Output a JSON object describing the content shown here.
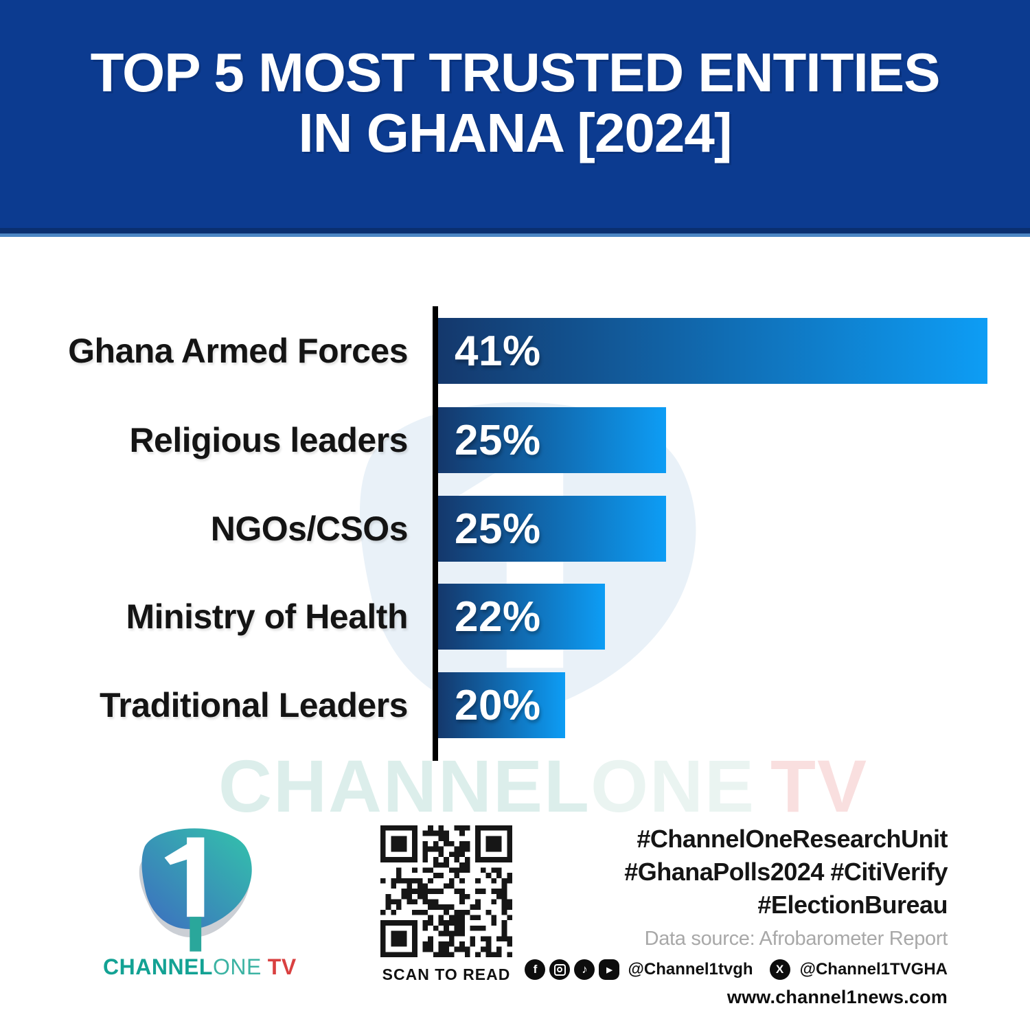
{
  "header": {
    "title_line1": "TOP 5 MOST TRUSTED ENTITIES",
    "title_line2": "IN GHANA [2024]"
  },
  "chart_data": {
    "type": "bar",
    "orientation": "horizontal",
    "title": "Top 5 Most Trusted Entities in Ghana [2024]",
    "categories": [
      "Ghana Armed Forces",
      "Religious leaders",
      "NGOs/CSOs",
      "Ministry of Health",
      "Traditional Leaders"
    ],
    "values": [
      41,
      25,
      25,
      22,
      20
    ],
    "value_labels": [
      "41%",
      "25%",
      "25%",
      "22%",
      "20%"
    ],
    "unit": "%",
    "bar_width_pct_of_max": [
      100,
      41.5,
      41.5,
      30.4,
      23.1
    ],
    "grid": false,
    "legend": false,
    "value_axis_visible": false
  },
  "watermark": {
    "part_channel": "CHANNEL",
    "part_one": "ONE",
    "part_tv": "TV"
  },
  "footer": {
    "logo": {
      "numeral": "1",
      "wordmark_channel": "CHANNEL",
      "wordmark_one": "ONE",
      "wordmark_tv": "TV"
    },
    "qr": {
      "caption": "SCAN TO READ"
    },
    "hashtags": {
      "line1": "#ChannelOneResearchUnit",
      "line2": "#GhanaPolls2024 #CitiVerify",
      "line3": "#ElectionBureau"
    },
    "data_source": "Data source: Afrobarometer Report",
    "social": {
      "icons": [
        "facebook-icon",
        "instagram-icon",
        "tiktok-icon",
        "youtube-icon",
        "x-icon"
      ],
      "handle_main": "@Channel1tvgh",
      "handle_x": "@Channel1TVGHA"
    },
    "website": "www.channel1news.com"
  },
  "colors": {
    "banner_blue": "#0c3b90",
    "banner_edge_dark": "#0a2f70",
    "banner_edge_light": "#4c86c4",
    "bar_start": "#14386c",
    "bar_end": "#0d9df5",
    "axis_black": "#000000",
    "label_black": "#141414",
    "hashtag_black": "#151515",
    "source_gray": "#a8a8a8",
    "logo_teal": "#13a294",
    "logo_teal_light": "#3cb3a3",
    "logo_red": "#d94040",
    "wm_teal": "#dceeeb",
    "wm_teal_light": "#eaf4f1",
    "wm_pink": "#f9dfdf",
    "shield_tint": "#e9f1f8"
  }
}
